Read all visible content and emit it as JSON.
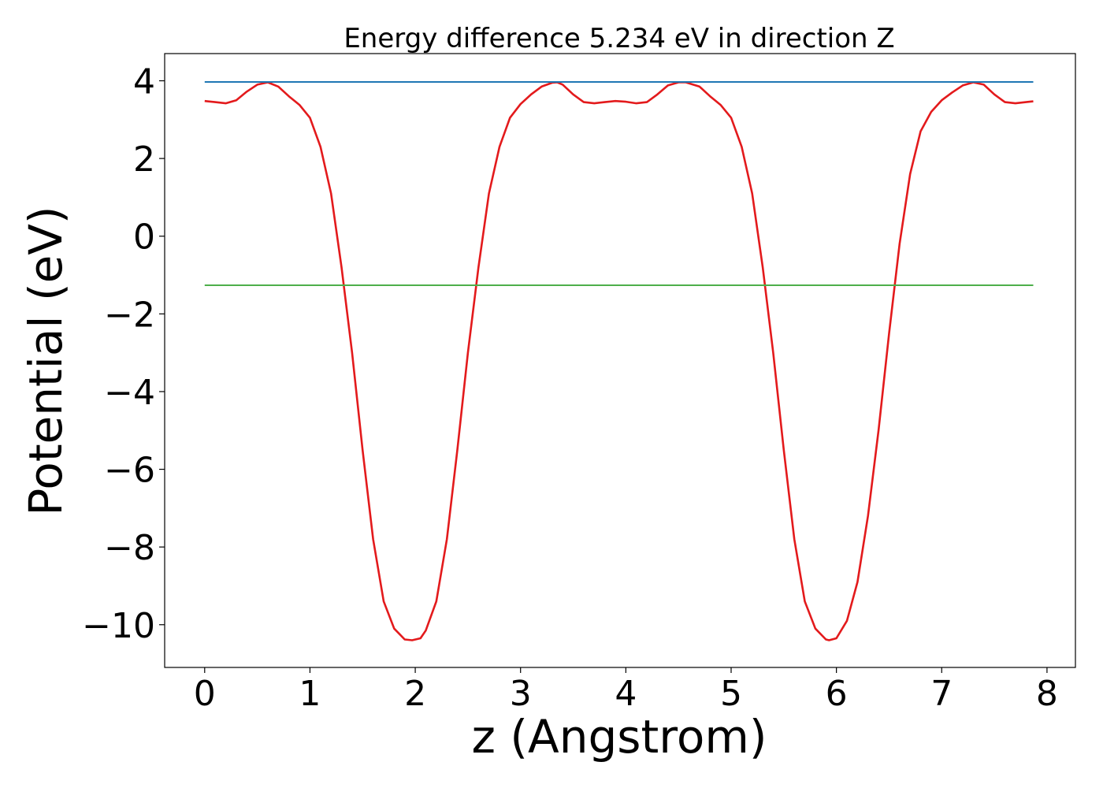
{
  "chart_data": {
    "type": "line",
    "title": "Energy difference 5.234 eV in direction Z",
    "xlabel": "z (Angstrom)",
    "ylabel": "Potential (eV)",
    "xlim": [
      -0.38,
      8.27
    ],
    "ylim": [
      -11.1,
      4.7
    ],
    "xticks": [
      0,
      1,
      2,
      3,
      4,
      5,
      6,
      7,
      8
    ],
    "yticks": [
      4,
      2,
      0,
      -2,
      -4,
      -6,
      -8,
      -10
    ],
    "ytick_labels": [
      "4",
      "2",
      "0",
      "−2",
      "−4",
      "−6",
      "−8",
      "−10"
    ],
    "grid": false,
    "series": [
      {
        "color": "#e31a1c",
        "x": [
          0.0,
          0.1,
          0.2,
          0.3,
          0.4,
          0.5,
          0.6,
          0.7,
          0.8,
          0.9,
          1.0,
          1.1,
          1.2,
          1.3,
          1.4,
          1.5,
          1.6,
          1.7,
          1.8,
          1.9,
          1.97,
          2.05,
          2.1,
          2.2,
          2.3,
          2.4,
          2.5,
          2.6,
          2.7,
          2.8,
          2.9,
          3.0,
          3.1,
          3.2,
          3.3,
          3.35,
          3.4,
          3.5,
          3.6,
          3.7,
          3.8,
          3.9,
          4.0,
          4.1,
          4.2,
          4.3,
          4.4,
          4.5,
          4.57,
          4.7,
          4.8,
          4.9,
          5.0,
          5.1,
          5.2,
          5.3,
          5.4,
          5.5,
          5.6,
          5.7,
          5.8,
          5.9,
          5.93,
          6.0,
          6.1,
          6.2,
          6.3,
          6.4,
          6.5,
          6.6,
          6.7,
          6.8,
          6.9,
          7.0,
          7.1,
          7.2,
          7.3,
          7.4,
          7.5,
          7.6,
          7.7,
          7.8,
          7.87
        ],
        "y": [
          3.48,
          3.45,
          3.42,
          3.5,
          3.72,
          3.9,
          3.96,
          3.85,
          3.6,
          3.38,
          3.05,
          2.3,
          1.1,
          -0.8,
          -3.0,
          -5.5,
          -7.8,
          -9.4,
          -10.1,
          -10.38,
          -10.4,
          -10.35,
          -10.15,
          -9.4,
          -7.8,
          -5.5,
          -3.0,
          -0.8,
          1.1,
          2.3,
          3.05,
          3.4,
          3.65,
          3.85,
          3.95,
          3.96,
          3.9,
          3.65,
          3.45,
          3.42,
          3.45,
          3.48,
          3.46,
          3.42,
          3.45,
          3.65,
          3.88,
          3.96,
          3.96,
          3.85,
          3.6,
          3.38,
          3.05,
          2.3,
          1.1,
          -0.8,
          -3.0,
          -5.5,
          -7.8,
          -9.4,
          -10.1,
          -10.38,
          -10.4,
          -10.35,
          -9.9,
          -8.9,
          -7.2,
          -5.0,
          -2.5,
          -0.2,
          1.6,
          2.7,
          3.2,
          3.5,
          3.7,
          3.88,
          3.96,
          3.9,
          3.65,
          3.45,
          3.42,
          3.45,
          3.47
        ]
      },
      {
        "color": "#1f77b4",
        "x": [
          0.0,
          7.87
        ],
        "y": [
          3.97,
          3.97
        ]
      },
      {
        "color": "#4daf4a",
        "x": [
          0.0,
          7.87
        ],
        "y": [
          -1.264,
          -1.264
        ]
      }
    ]
  }
}
